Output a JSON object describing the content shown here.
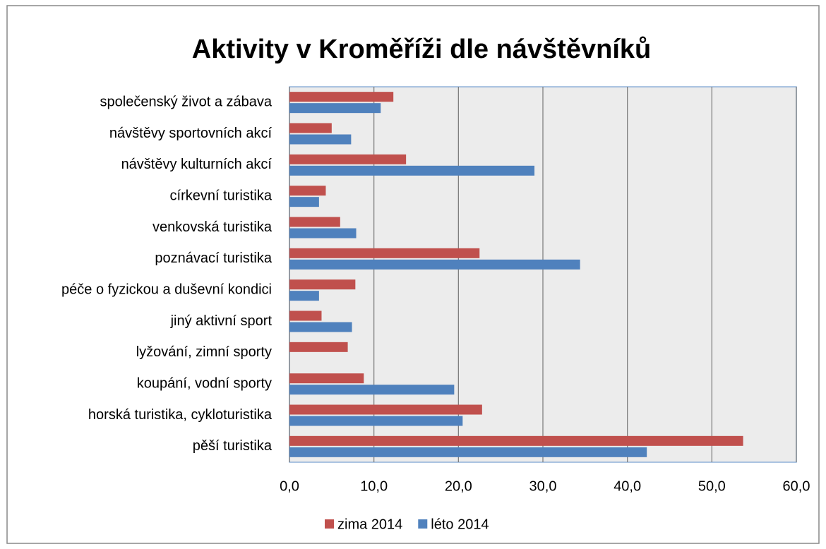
{
  "chart_data": {
    "type": "hbar",
    "title": "Aktivity v Kroměříži  dle návštěvníků",
    "categories": [
      "společenský život a zábava",
      "návštěvy sportovních akcí",
      "návštěvy kulturních akcí",
      "církevní turistika",
      "venkovská turistika",
      "poznávací turistika",
      "péče o fyzickou a duševní kondici",
      "jiný aktivní sport",
      "lyžování, zimní sporty",
      "koupání, vodní sporty",
      "horská turistika, cykloturistika",
      "pěší turistika"
    ],
    "series": [
      {
        "name": "zima 2014",
        "color": "#c0504d",
        "values": [
          12.3,
          5.0,
          13.8,
          4.3,
          6.0,
          22.5,
          7.8,
          3.8,
          6.9,
          8.8,
          22.8,
          53.7
        ]
      },
      {
        "name": "léto 2014",
        "color": "#4f81bd",
        "values": [
          10.8,
          7.3,
          29.0,
          3.5,
          7.9,
          34.4,
          3.5,
          7.4,
          0,
          19.5,
          20.5,
          42.3
        ]
      }
    ],
    "xlim": [
      0,
      60
    ],
    "xticks": [
      {
        "value": 0,
        "label": "0,0"
      },
      {
        "value": 10,
        "label": "10,0"
      },
      {
        "value": 20,
        "label": "20,0"
      },
      {
        "value": 30,
        "label": "30,0"
      },
      {
        "value": 40,
        "label": "40,0"
      },
      {
        "value": 50,
        "label": "50,0"
      },
      {
        "value": 60,
        "label": "60,0"
      }
    ],
    "grid": true,
    "legend": "bottom"
  }
}
